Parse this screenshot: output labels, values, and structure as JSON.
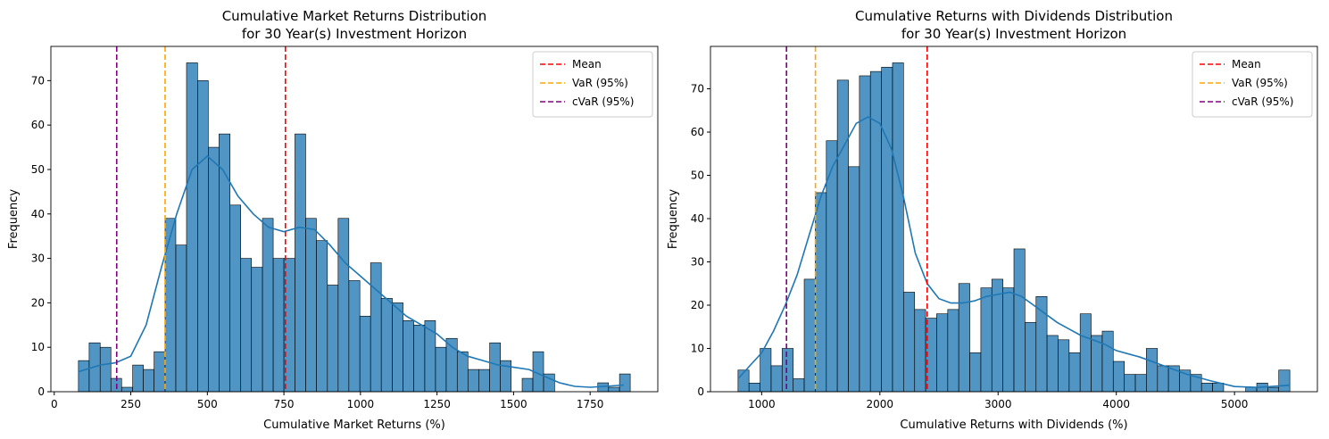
{
  "chart_data": [
    {
      "type": "histogram",
      "title": [
        "Cumulative Market Returns Distribution",
        "for 30 Year(s) Investment Horizon"
      ],
      "xlabel": "Cumulative Market Returns (%)",
      "ylabel": "Frequency",
      "bins": [
        79,
        114,
        150,
        185,
        220,
        256,
        291,
        326,
        362,
        397,
        432,
        468,
        503,
        538,
        574,
        609,
        644,
        680,
        715,
        750,
        786,
        821,
        856,
        892,
        927,
        962,
        998,
        1033,
        1068,
        1104,
        1139,
        1174,
        1210,
        1245,
        1280,
        1316,
        1351,
        1386,
        1422,
        1457,
        1492,
        1528,
        1563,
        1598,
        1634,
        1669,
        1704,
        1740,
        1775,
        1810,
        1846,
        1881
      ],
      "counts": [
        7,
        11,
        10,
        3,
        1,
        6,
        5,
        9,
        39,
        33,
        74,
        70,
        55,
        58,
        42,
        30,
        28,
        39,
        30,
        30,
        58,
        39,
        34,
        24,
        39,
        25,
        17,
        29,
        21,
        20,
        16,
        15,
        16,
        10,
        12,
        9,
        5,
        5,
        11,
        7,
        0,
        3,
        9,
        4,
        0,
        0,
        0,
        0,
        2,
        1,
        4
      ],
      "color": "#1f77b4",
      "kde": {
        "x": [
          79,
          150,
          200,
          250,
          300,
          350,
          400,
          450,
          500,
          550,
          600,
          650,
          700,
          750,
          800,
          850,
          900,
          950,
          1000,
          1050,
          1100,
          1150,
          1200,
          1250,
          1300,
          1350,
          1400,
          1450,
          1500,
          1550,
          1600,
          1650,
          1700,
          1750,
          1800,
          1860
        ],
        "y": [
          4.5,
          6,
          6.5,
          8,
          15,
          28,
          40,
          50,
          53,
          50,
          44,
          40,
          37,
          36,
          37,
          36.5,
          33,
          29,
          26,
          23,
          20,
          17,
          15,
          13,
          10,
          8,
          7,
          6,
          5.5,
          5,
          3.5,
          2,
          1.2,
          1,
          1.2,
          1.5
        ]
      },
      "lines": [
        {
          "name": "Mean",
          "value": 755,
          "color": "#ff0000"
        },
        {
          "name": "VaR (95%)",
          "value": 362,
          "color": "#ffa500"
        },
        {
          "name": "cVaR (95%)",
          "value": 204,
          "color": "#800080"
        }
      ],
      "xlim": [
        -11,
        1971
      ],
      "ylim": [
        0,
        77.7
      ],
      "xticks": [
        0,
        250,
        500,
        750,
        1000,
        1250,
        1500,
        1750
      ],
      "yticks": [
        0,
        10,
        20,
        30,
        40,
        50,
        60,
        70
      ],
      "legend": "upper right"
    },
    {
      "type": "histogram",
      "title": [
        "Cumulative Returns with Dividends Distribution",
        "for 30 Year(s) Investment Horizon"
      ],
      "xlabel": "Cumulative Returns with Dividends (%)",
      "ylabel": "Frequency",
      "bins": [
        800,
        893,
        987,
        1080,
        1173,
        1267,
        1360,
        1454,
        1547,
        1640,
        1734,
        1827,
        1920,
        2014,
        2107,
        2200,
        2294,
        2387,
        2480,
        2574,
        2667,
        2761,
        2854,
        2947,
        3041,
        3134,
        3227,
        3321,
        3414,
        3507,
        3601,
        3694,
        3787,
        3881,
        3974,
        4068,
        4161,
        4254,
        4348,
        4441,
        4534,
        4628,
        4721,
        4814,
        4908,
        5001,
        5094,
        5188,
        5281,
        5374,
        5468
      ],
      "counts": [
        5,
        2,
        10,
        6,
        10,
        3,
        26,
        46,
        58,
        72,
        52,
        73,
        74,
        75,
        76,
        23,
        19,
        17,
        18,
        19,
        25,
        9,
        24,
        26,
        24,
        33,
        16,
        22,
        13,
        12,
        9,
        18,
        13,
        14,
        7,
        4,
        4,
        10,
        6,
        6,
        5,
        4,
        2,
        2,
        0,
        0,
        1,
        2,
        1,
        5
      ],
      "color": "#1f77b4",
      "kde": {
        "x": [
          800,
          900,
          1000,
          1100,
          1200,
          1300,
          1400,
          1500,
          1600,
          1700,
          1800,
          1900,
          2000,
          2100,
          2200,
          2300,
          2400,
          2500,
          2600,
          2700,
          2800,
          2900,
          3000,
          3100,
          3200,
          3300,
          3400,
          3500,
          3600,
          3700,
          3800,
          3900,
          4000,
          4200,
          4400,
          4600,
          4800,
          5000,
          5200,
          5468
        ],
        "y": [
          3,
          6,
          9,
          14,
          20,
          27,
          36,
          45,
          52,
          57,
          62,
          63.5,
          62,
          56,
          45,
          32,
          25,
          21.5,
          20.5,
          20.5,
          21,
          22,
          22.5,
          23,
          22,
          20,
          18,
          16,
          14.5,
          13,
          12,
          11,
          9.5,
          8,
          6,
          4,
          2.5,
          1.2,
          1,
          1.5
        ]
      },
      "lines": [
        {
          "name": "Mean",
          "value": 2400,
          "color": "#ff0000"
        },
        {
          "name": "VaR (95%)",
          "value": 1455,
          "color": "#ffa500"
        },
        {
          "name": "cVaR (95%)",
          "value": 1210,
          "color": "#800080"
        }
      ],
      "xlim": [
        567,
        5701
      ],
      "ylim": [
        0,
        79.8
      ],
      "xticks": [
        1000,
        2000,
        3000,
        4000,
        5000
      ],
      "yticks": [
        0,
        10,
        20,
        30,
        40,
        50,
        60,
        70
      ],
      "legend": "upper right"
    }
  ]
}
